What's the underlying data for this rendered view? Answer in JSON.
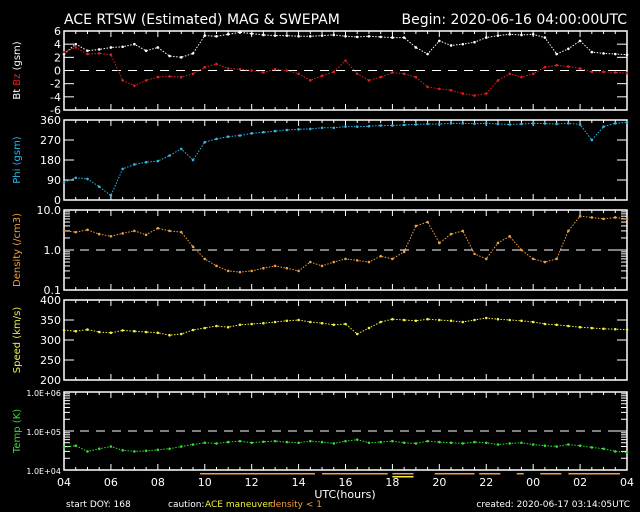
{
  "title": "ACE RTSW (Estimated) MAG & SWEPAM",
  "begin": "Begin: 2020-06-16 04:00:00UTC",
  "xlabel": "UTC(hours)",
  "footer": {
    "start_doy": "start DOY: 168",
    "caution": "caution:",
    "maneuver": "ACE maneuver",
    "density_lt1": "density < 1",
    "created": "created: 2020-06-17 03:14:05UTC"
  },
  "colors": {
    "bt": "#ffffff",
    "bz": "#e02020",
    "phi": "#30b8e8",
    "density": "#f0a040",
    "speed": "#f0f040",
    "temp": "#30e030",
    "maneuver": "#f0f040",
    "caution": "#f0a040"
  },
  "chart_data": [
    {
      "type": "scatter",
      "id": "mag",
      "ylabel_parts": [
        "Bt",
        "Bz",
        "(gsm)"
      ],
      "ylim": [
        -6,
        6
      ],
      "yticks": [
        6,
        4,
        2,
        0,
        -2,
        -4,
        -6
      ],
      "ytick_labels": [
        "6",
        "4",
        "2",
        "0",
        "-2",
        "-4",
        "-6"
      ],
      "refline": 0,
      "x": [
        0,
        0.5,
        1,
        1.5,
        2,
        2.5,
        3,
        3.5,
        4,
        4.5,
        5,
        5.5,
        6,
        6.5,
        7,
        7.5,
        8,
        8.5,
        9,
        9.5,
        10,
        10.5,
        11,
        11.5,
        12,
        12.5,
        13,
        13.5,
        14,
        14.5,
        15,
        15.5,
        16,
        16.5,
        17,
        17.5,
        18,
        18.5,
        19,
        19.5,
        20,
        20.5,
        21,
        21.5,
        22,
        22.5,
        23,
        23.5,
        24
      ],
      "series": [
        {
          "name": "Bt",
          "values": [
            2.5,
            4,
            3,
            3.2,
            3.5,
            3.6,
            4,
            3,
            3.5,
            2.2,
            2,
            2.6,
            5.3,
            5.2,
            5.5,
            5.8,
            5.6,
            5.4,
            5.3,
            5.3,
            5.2,
            5.2,
            5.3,
            5.4,
            5.2,
            5.1,
            5.2,
            5.1,
            5.0,
            5.0,
            3.5,
            2.5,
            4.5,
            3.8,
            4.0,
            4.3,
            5.0,
            5.3,
            5.5,
            5.4,
            5.5,
            5.0,
            2.5,
            3.3,
            4.5,
            2.8,
            2.6,
            2.5,
            2.4
          ]
        },
        {
          "name": "Bz",
          "values": [
            2.8,
            3.5,
            2.5,
            2.6,
            2.4,
            -1.5,
            -2.3,
            -1.5,
            -1.0,
            -0.9,
            -1.0,
            -0.5,
            0.5,
            1.0,
            0.3,
            0.2,
            0,
            -0.3,
            0.2,
            0,
            -0.5,
            -1.5,
            -0.8,
            -0.2,
            1.5,
            -0.5,
            -1.5,
            -1.0,
            -0.3,
            -0.5,
            -1.0,
            -2.5,
            -2.8,
            -3.0,
            -3.5,
            -3.8,
            -3.5,
            -1.5,
            -0.5,
            -1.0,
            -0.5,
            0.5,
            0.8,
            0.6,
            0.3,
            -0.2,
            -0.2,
            -0.3,
            -0.4
          ]
        }
      ]
    },
    {
      "type": "scatter",
      "id": "phi",
      "ylabel": "Phi (gsm)",
      "ylim": [
        0,
        360
      ],
      "yticks": [
        360,
        270,
        180,
        90,
        0
      ],
      "ytick_labels": [
        "360",
        "270",
        "180",
        "90",
        "0"
      ],
      "x": [
        0,
        0.5,
        1,
        1.5,
        2,
        2.5,
        3,
        3.5,
        4,
        4.5,
        5,
        5.5,
        6,
        6.5,
        7,
        7.5,
        8,
        8.5,
        9,
        9.5,
        10,
        10.5,
        11,
        11.5,
        12,
        12.5,
        13,
        13.5,
        14,
        14.5,
        15,
        15.5,
        16,
        16.5,
        17,
        17.5,
        18,
        18.5,
        19,
        19.5,
        20,
        20.5,
        21,
        21.5,
        22,
        22.5,
        23,
        23.5,
        24
      ],
      "series": [
        {
          "name": "Phi",
          "values": [
            80,
            100,
            95,
            60,
            20,
            140,
            160,
            170,
            175,
            200,
            230,
            180,
            260,
            275,
            285,
            290,
            300,
            305,
            310,
            315,
            318,
            320,
            325,
            325,
            330,
            330,
            332,
            335,
            335,
            338,
            340,
            342,
            342,
            345,
            345,
            343,
            345,
            342,
            340,
            342,
            345,
            344,
            342,
            345,
            340,
            270,
            330,
            345,
            350
          ]
        }
      ]
    },
    {
      "type": "scatter",
      "id": "density",
      "ylabel": "Density (/cm3)",
      "yscale": "log",
      "ylim": [
        0.1,
        10
      ],
      "yticks": [
        10,
        1,
        0.1
      ],
      "ytick_labels": [
        "10.0",
        "1.0",
        "0.1"
      ],
      "refline": 1,
      "x": [
        0,
        0.5,
        1,
        1.5,
        2,
        2.5,
        3,
        3.5,
        4,
        4.5,
        5,
        5.5,
        6,
        6.5,
        7,
        7.5,
        8,
        8.5,
        9,
        9.5,
        10,
        10.5,
        11,
        11.5,
        12,
        12.5,
        13,
        13.5,
        14,
        14.5,
        15,
        15.5,
        16,
        16.5,
        17,
        17.5,
        18,
        18.5,
        19,
        19.5,
        20,
        20.5,
        21,
        21.5,
        22,
        22.5,
        23,
        23.5,
        24
      ],
      "series": [
        {
          "name": "Density",
          "values": [
            3,
            2.8,
            3.2,
            2.5,
            2.2,
            2.6,
            3,
            2.4,
            3.5,
            3,
            2.8,
            1.2,
            0.6,
            0.4,
            0.3,
            0.28,
            0.3,
            0.35,
            0.4,
            0.35,
            0.3,
            0.5,
            0.4,
            0.5,
            0.6,
            0.55,
            0.5,
            0.7,
            0.6,
            0.9,
            4,
            5,
            1.5,
            2.5,
            3,
            0.8,
            0.6,
            1.5,
            2.2,
            1.0,
            0.6,
            0.5,
            0.6,
            3,
            7,
            6.5,
            6,
            6.5,
            6
          ]
        }
      ]
    },
    {
      "type": "scatter",
      "id": "speed",
      "ylabel": "Speed (km/s)",
      "ylim": [
        200,
        400
      ],
      "yticks": [
        400,
        350,
        300,
        250,
        200
      ],
      "ytick_labels": [
        "400",
        "350",
        "300",
        "250",
        "200"
      ],
      "x": [
        0,
        0.5,
        1,
        1.5,
        2,
        2.5,
        3,
        3.5,
        4,
        4.5,
        5,
        5.5,
        6,
        6.5,
        7,
        7.5,
        8,
        8.5,
        9,
        9.5,
        10,
        10.5,
        11,
        11.5,
        12,
        12.5,
        13,
        13.5,
        14,
        14.5,
        15,
        15.5,
        16,
        16.5,
        17,
        17.5,
        18,
        18.5,
        19,
        19.5,
        20,
        20.5,
        21,
        21.5,
        22,
        22.5,
        23,
        23.5,
        24
      ],
      "series": [
        {
          "name": "Speed",
          "values": [
            325,
            322,
            326,
            320,
            318,
            324,
            322,
            320,
            318,
            312,
            315,
            325,
            330,
            335,
            332,
            338,
            340,
            342,
            345,
            348,
            350,
            345,
            342,
            338,
            340,
            315,
            330,
            345,
            352,
            350,
            348,
            352,
            350,
            348,
            345,
            350,
            355,
            352,
            350,
            348,
            345,
            340,
            338,
            335,
            332,
            330,
            328,
            327,
            326
          ]
        }
      ]
    },
    {
      "type": "scatter",
      "id": "temp",
      "ylabel": "Temp (K)",
      "yscale": "log",
      "ylim": [
        10000,
        1000000
      ],
      "yticks": [
        1000000,
        100000,
        10000
      ],
      "ytick_labels": [
        "1.0E+06",
        "1.0E+05",
        "1.0E+04"
      ],
      "refline": 100000,
      "x": [
        0,
        0.5,
        1,
        1.5,
        2,
        2.5,
        3,
        3.5,
        4,
        4.5,
        5,
        5.5,
        6,
        6.5,
        7,
        7.5,
        8,
        8.5,
        9,
        9.5,
        10,
        10.5,
        11,
        11.5,
        12,
        12.5,
        13,
        13.5,
        14,
        14.5,
        15,
        15.5,
        16,
        16.5,
        17,
        17.5,
        18,
        18.5,
        19,
        19.5,
        20,
        20.5,
        21,
        21.5,
        22,
        22.5,
        23,
        23.5,
        24
      ],
      "series": [
        {
          "name": "Temp",
          "values": [
            38000,
            42000,
            30000,
            35000,
            40000,
            32000,
            30000,
            31000,
            33000,
            35000,
            40000,
            45000,
            50000,
            48000,
            52000,
            55000,
            50000,
            53000,
            55000,
            52000,
            50000,
            55000,
            52000,
            48000,
            55000,
            60000,
            50000,
            52000,
            55000,
            50000,
            48000,
            55000,
            52000,
            50000,
            48000,
            52000,
            50000,
            45000,
            48000,
            50000,
            45000,
            42000,
            40000,
            45000,
            42000,
            38000,
            35000,
            30000,
            28000
          ]
        }
      ]
    }
  ],
  "xaxis": {
    "range_hours": [
      0,
      24
    ],
    "tick_labels": [
      "04",
      "06",
      "08",
      "10",
      "12",
      "14",
      "16",
      "18",
      "20",
      "22",
      "00",
      "02",
      "04"
    ]
  },
  "caution_intervals": {
    "maneuver": [
      [
        14.0,
        14.9
      ]
    ],
    "density_lt1": [
      [
        5.8,
        10.7
      ],
      [
        11.0,
        13.8
      ],
      [
        14.0,
        14.9
      ],
      [
        15.8,
        17.5
      ],
      [
        17.7,
        18.6
      ],
      [
        19.3,
        19.6
      ],
      [
        20.3,
        21.2
      ],
      [
        21.5,
        23.7
      ]
    ]
  }
}
